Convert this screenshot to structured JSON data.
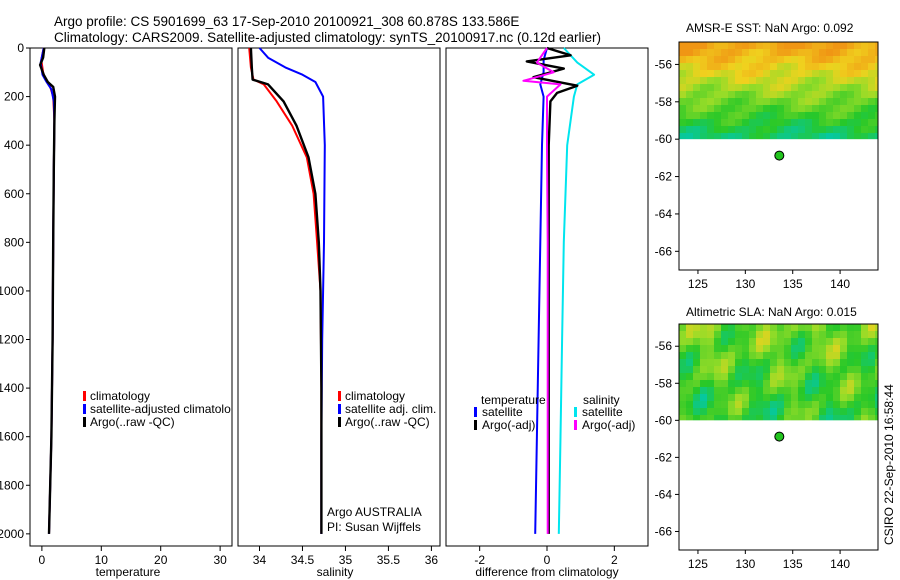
{
  "title_line1": "Argo profile: CS 5901699_63 17-Sep-2010 20100921_308 60.878S 133.586E",
  "title_line2": "Climatology: CARS2009. Satellite-adjusted climatology: synTS_20100917.nc (0.12d earlier)",
  "footer_stamp": "CSIRO 22-Sep-2010 16:58:44",
  "chart_data": [
    {
      "id": "temperature",
      "type": "line",
      "xlabel": "temperature",
      "ylabel": "",
      "xlim": [
        -2,
        32
      ],
      "ylim": [
        2050,
        0
      ],
      "xticks": [
        0,
        10,
        20,
        30
      ],
      "yticks": [
        0,
        200,
        400,
        600,
        800,
        1000,
        1200,
        1400,
        1600,
        1800,
        2000
      ],
      "legend": [
        {
          "label": "climatology",
          "color": "#ff0000"
        },
        {
          "label": "satellite-adjusted climatolo",
          "color": "#0000ff"
        },
        {
          "label": "Argo(..raw -QC)",
          "color": "#000000"
        }
      ],
      "series": [
        {
          "name": "climatology",
          "color": "#ff0000",
          "points": [
            [
              0.3,
              0
            ],
            [
              -0.1,
              50
            ],
            [
              0.2,
              100
            ],
            [
              0.6,
              130
            ],
            [
              1.4,
              160
            ],
            [
              1.9,
              200
            ],
            [
              2.1,
              300
            ],
            [
              2.0,
              500
            ],
            [
              1.9,
              800
            ],
            [
              1.8,
              1200
            ],
            [
              1.6,
              1600
            ],
            [
              1.3,
              1900
            ],
            [
              1.2,
              2000
            ]
          ]
        },
        {
          "name": "satellite-adjusted climatology",
          "color": "#0000ff",
          "points": [
            [
              0.3,
              0
            ],
            [
              -0.2,
              60
            ],
            [
              0.1,
              110
            ],
            [
              0.8,
              140
            ],
            [
              1.6,
              170
            ],
            [
              2.0,
              220
            ],
            [
              2.1,
              300
            ],
            [
              2.0,
              500
            ],
            [
              1.9,
              800
            ],
            [
              1.8,
              1200
            ],
            [
              1.6,
              1600
            ],
            [
              1.3,
              1900
            ],
            [
              1.2,
              2000
            ]
          ]
        },
        {
          "name": "Argo(..raw -QC)",
          "color": "#000000",
          "points": [
            [
              0.4,
              0
            ],
            [
              0.2,
              40
            ],
            [
              -0.3,
              70
            ],
            [
              0.3,
              110
            ],
            [
              1.0,
              140
            ],
            [
              1.9,
              160
            ],
            [
              2.2,
              200
            ],
            [
              2.1,
              300
            ],
            [
              2.0,
              500
            ],
            [
              1.9,
              800
            ],
            [
              1.8,
              1200
            ],
            [
              1.6,
              1600
            ],
            [
              1.3,
              1900
            ],
            [
              1.2,
              2000
            ]
          ]
        }
      ]
    },
    {
      "id": "salinity",
      "type": "line",
      "xlabel": "salinity",
      "xlim": [
        33.75,
        36.1
      ],
      "ylim": [
        2050,
        0
      ],
      "xticks": [
        34,
        34.5,
        35,
        35.5,
        36
      ],
      "xticklabels": [
        "34",
        "34.5",
        "35",
        "35.5",
        "36"
      ],
      "legend": [
        {
          "label": "climatology",
          "color": "#ff0000"
        },
        {
          "label": "satellite adj. clim.",
          "color": "#0000ff"
        },
        {
          "label": "Argo(..raw -QC)",
          "color": "#000000"
        }
      ],
      "annotation_line1": "Argo AUSTRALIA",
      "annotation_line2": "PI: Susan Wijffels",
      "series": [
        {
          "name": "climatology",
          "color": "#ff0000",
          "points": [
            [
              33.88,
              0
            ],
            [
              33.9,
              80
            ],
            [
              33.93,
              130
            ],
            [
              34.05,
              150
            ],
            [
              34.2,
              220
            ],
            [
              34.38,
              320
            ],
            [
              34.55,
              450
            ],
            [
              34.63,
              600
            ],
            [
              34.67,
              800
            ],
            [
              34.71,
              1000
            ],
            [
              34.72,
              1400
            ],
            [
              34.72,
              2000
            ]
          ]
        },
        {
          "name": "satellite adj. clim.",
          "color": "#0000ff",
          "points": [
            [
              34.0,
              0
            ],
            [
              34.1,
              40
            ],
            [
              34.3,
              80
            ],
            [
              34.5,
              110
            ],
            [
              34.65,
              140
            ],
            [
              34.74,
              200
            ],
            [
              34.76,
              400
            ],
            [
              34.75,
              800
            ],
            [
              34.73,
              1200
            ],
            [
              34.72,
              1600
            ],
            [
              34.72,
              2000
            ]
          ]
        },
        {
          "name": "Argo(..raw -QC)",
          "color": "#000000",
          "points": [
            [
              33.9,
              0
            ],
            [
              33.91,
              80
            ],
            [
              33.92,
              130
            ],
            [
              34.1,
              150
            ],
            [
              34.28,
              220
            ],
            [
              34.43,
              320
            ],
            [
              34.57,
              450
            ],
            [
              34.65,
              600
            ],
            [
              34.69,
              800
            ],
            [
              34.71,
              1000
            ],
            [
              34.72,
              1400
            ],
            [
              34.72,
              2000
            ]
          ]
        }
      ]
    },
    {
      "id": "difference",
      "type": "line",
      "xlabel": "difference from climatology",
      "xlim": [
        -3,
        3
      ],
      "ylim": [
        2050,
        0
      ],
      "xticks": [
        -2,
        0,
        2
      ],
      "legend_left_title": "temperature",
      "legend_right_title": "salinity",
      "legend": [
        {
          "label": "satellite",
          "color": "#0000ff",
          "group": "temperature"
        },
        {
          "label": "Argo(-adj)",
          "color": "#000000",
          "group": "temperature"
        },
        {
          "label": "satellite",
          "color": "#00e5ee",
          "group": "salinity"
        },
        {
          "label": "Argo(-adj)",
          "color": "#ff00ff",
          "group": "salinity"
        }
      ],
      "series": [
        {
          "name": "temperature satellite",
          "color": "#0000ff",
          "points": [
            [
              0.0,
              0
            ],
            [
              -0.1,
              50
            ],
            [
              -0.1,
              100
            ],
            [
              -0.2,
              150
            ],
            [
              -0.1,
              200
            ],
            [
              -0.15,
              400
            ],
            [
              -0.2,
              800
            ],
            [
              -0.25,
              1200
            ],
            [
              -0.3,
              1600
            ],
            [
              -0.35,
              2000
            ]
          ]
        },
        {
          "name": "salinity satellite",
          "color": "#00e5ee",
          "points": [
            [
              0.5,
              0
            ],
            [
              0.9,
              60
            ],
            [
              1.4,
              110
            ],
            [
              0.9,
              150
            ],
            [
              0.8,
              200
            ],
            [
              0.6,
              400
            ],
            [
              0.5,
              800
            ],
            [
              0.45,
              1200
            ],
            [
              0.4,
              1600
            ],
            [
              0.35,
              2000
            ]
          ]
        },
        {
          "name": "temperature Argo(-adj)",
          "color": "#000000",
          "points": [
            [
              0.0,
              0
            ],
            [
              0.7,
              30
            ],
            [
              -0.6,
              55
            ],
            [
              0.5,
              85
            ],
            [
              -0.4,
              120
            ],
            [
              0.9,
              155
            ],
            [
              0.3,
              185
            ],
            [
              0.1,
              220
            ],
            [
              0.05,
              400
            ],
            [
              0.05,
              800
            ],
            [
              0.05,
              1200
            ],
            [
              0.05,
              1600
            ],
            [
              0.05,
              2000
            ]
          ]
        },
        {
          "name": "salinity Argo(-adj)",
          "color": "#ff00ff",
          "points": [
            [
              0.0,
              0
            ],
            [
              -0.3,
              60
            ],
            [
              0.2,
              100
            ],
            [
              -0.7,
              135
            ],
            [
              0.4,
              150
            ],
            [
              0.0,
              200
            ],
            [
              0.0,
              400
            ],
            [
              0.02,
              800
            ],
            [
              0.02,
              1200
            ],
            [
              0.02,
              1600
            ],
            [
              0.02,
              2000
            ]
          ]
        }
      ]
    },
    {
      "id": "sst-map",
      "type": "heatmap",
      "title": "AMSR-E SST: NaN Argo: 0.092",
      "xlim": [
        123,
        144
      ],
      "ylim": [
        -67,
        -54.8
      ],
      "xticks": [
        125,
        130,
        135,
        140
      ],
      "yticks": [
        -56,
        -58,
        -60,
        -62,
        -64,
        -66
      ],
      "data_extent_lat": [
        -60,
        -54.8
      ],
      "float_position": {
        "lon": 133.586,
        "lat": -60.878
      }
    },
    {
      "id": "sla-map",
      "type": "heatmap",
      "title": "Altimetric SLA: NaN Argo: 0.015",
      "xlim": [
        123,
        144
      ],
      "ylim": [
        -67,
        -54.8
      ],
      "xticks": [
        125,
        130,
        135,
        140
      ],
      "yticks": [
        -56,
        -58,
        -60,
        -62,
        -64,
        -66
      ],
      "data_extent_lat": [
        -60,
        -54.8
      ],
      "float_position": {
        "lon": 133.586,
        "lat": -60.878
      }
    }
  ]
}
